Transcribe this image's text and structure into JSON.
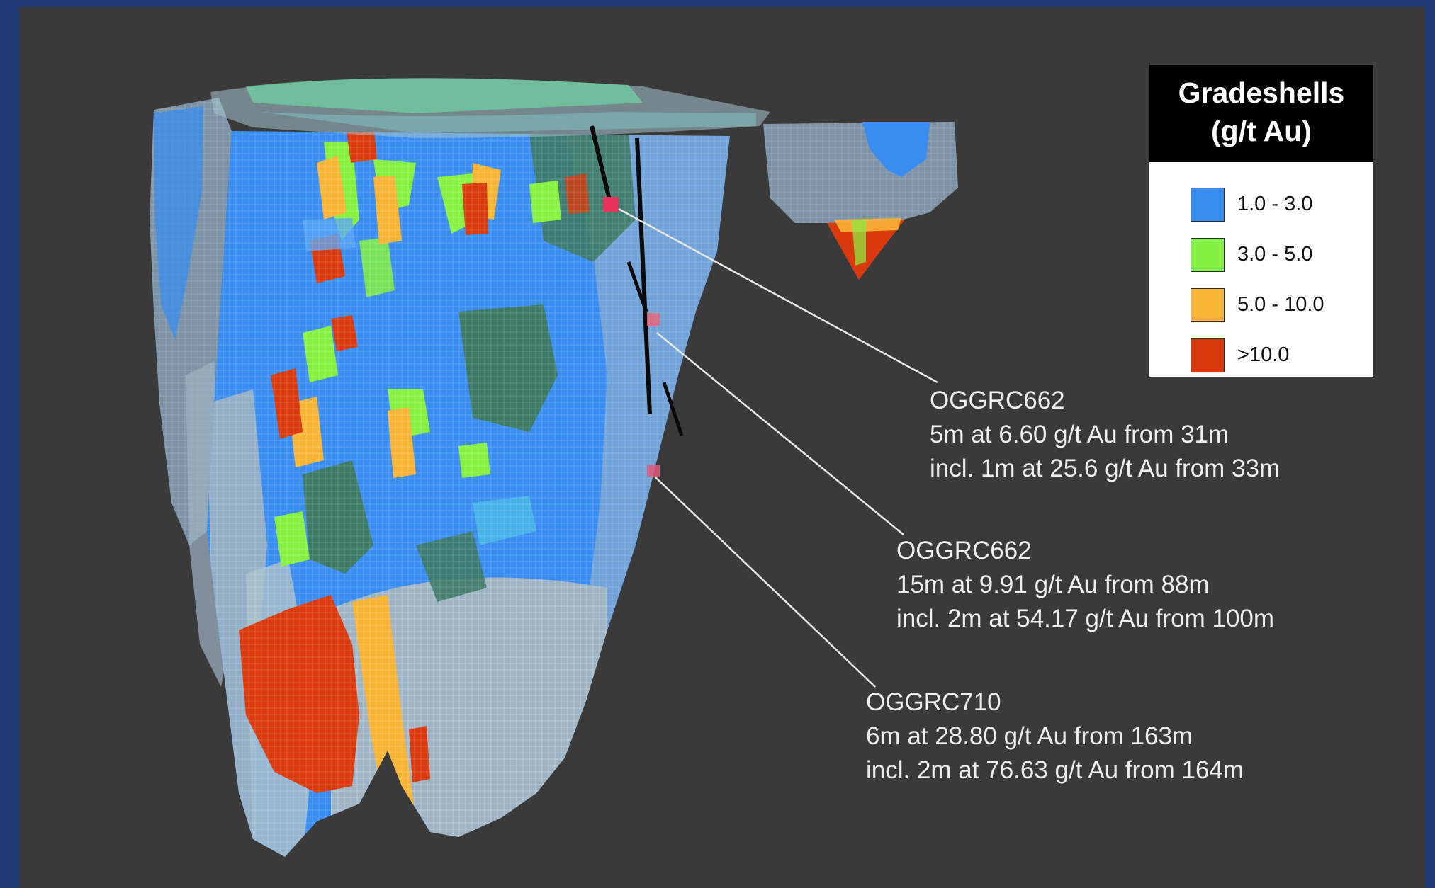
{
  "legend": {
    "title_line1": "Gradeshells",
    "title_line2": "(g/t Au)",
    "items": [
      {
        "label": "1.0 - 3.0",
        "color": "#3a8df0"
      },
      {
        "label": "3.0 - 5.0",
        "color": "#86f040"
      },
      {
        "label": "5.0 - 10.0",
        "color": "#f8b436"
      },
      {
        "label": ">10.0",
        "color": "#d9390c"
      }
    ]
  },
  "annotations": [
    {
      "hole": "OGGRC662",
      "line1": "5m at 6.60 g/t Au from 31m",
      "line2": "incl. 1m at 25.6 g/t Au from 33m"
    },
    {
      "hole": "OGGRC662",
      "line1": "15m at 9.91 g/t Au from 88m",
      "line2": "incl. 2m at 54.17 g/t Au from 100m"
    },
    {
      "hole": "OGGRC710",
      "line1": "6m at 28.80 g/t Au from 163m",
      "line2": "incl. 2m at 76.63 g/t Au from 164m"
    }
  ],
  "colors": {
    "background": "#3a3a3b",
    "border": "#203a78",
    "shell_blue": "#3a8df0",
    "shell_green": "#86f040",
    "shell_orange": "#f8b436",
    "shell_red": "#d9390c",
    "shell_grey": "#9eb4c4",
    "shell_dark_green": "#3d7a66"
  }
}
